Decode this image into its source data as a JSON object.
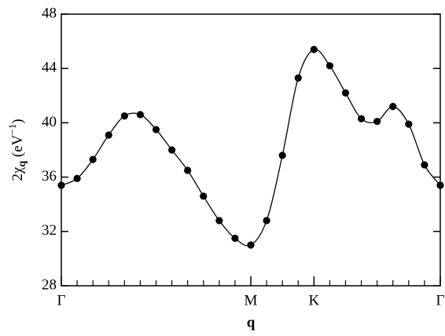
{
  "chart_data": {
    "type": "line",
    "x": [
      0,
      1,
      2,
      3,
      4,
      5,
      6,
      7,
      8,
      9,
      10,
      11,
      12,
      13,
      14,
      15,
      16,
      17,
      18,
      19,
      20,
      21,
      22,
      23,
      24
    ],
    "series": [
      {
        "color": "#000000",
        "values": [
          35.4,
          35.9,
          37.3,
          39.1,
          40.5,
          40.6,
          39.5,
          38.0,
          36.5,
          34.6,
          32.8,
          31.5,
          31.0,
          32.8,
          37.6,
          43.3,
          45.4,
          44.2,
          42.2,
          40.3,
          40.1,
          41.2,
          39.9,
          36.9,
          35.4
        ]
      }
    ],
    "xlim": [
      0,
      24
    ],
    "xticks": [
      {
        "value": 0,
        "label": "Γ"
      },
      {
        "value": 12,
        "label": "M"
      },
      {
        "value": 16,
        "label": "K"
      },
      {
        "value": 24,
        "label": "Γ"
      }
    ],
    "xminor": [
      1,
      2,
      3,
      4,
      5,
      6,
      7,
      8,
      9,
      10,
      11,
      13,
      14,
      15,
      17,
      18,
      19,
      20,
      21,
      22,
      23
    ],
    "ylim": [
      28,
      48
    ],
    "yticks": [
      28,
      32,
      36,
      40,
      44,
      48
    ],
    "xlabel": "q",
    "ylabel": {
      "main": "2χ",
      "sub": "q",
      "unit": " (eV",
      "sup": "−1",
      "close": ")"
    }
  }
}
